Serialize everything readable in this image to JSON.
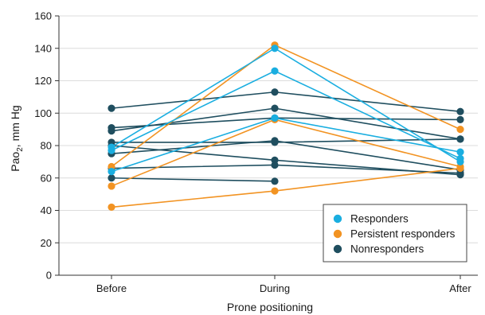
{
  "chart_data": {
    "type": "line",
    "categories": [
      "Before",
      "During",
      "After"
    ],
    "xlabel": "Prone positioning",
    "ylabel_main": "Pao",
    "ylabel_sub": "2",
    "ylabel_unit": ", mm Hg",
    "ylim": [
      0,
      160
    ],
    "yticks": [
      0,
      20,
      40,
      60,
      80,
      100,
      120,
      140,
      160
    ],
    "grid": "horizontal",
    "legend_position": "bottom-right",
    "colors": {
      "Responders": "#1aaee0",
      "Persistent responders": "#f29322",
      "Nonresponders": "#1f4e5f"
    },
    "legend": [
      "Responders",
      "Persistent responders",
      "Nonresponders"
    ],
    "patients": [
      {
        "group": "Responders",
        "values": [
          79,
          140,
          70
        ]
      },
      {
        "group": "Responders",
        "values": [
          77,
          126,
          72
        ]
      },
      {
        "group": "Responders",
        "values": [
          64,
          97,
          76
        ]
      },
      {
        "group": "Persistent responders",
        "values": [
          67,
          142,
          90
        ]
      },
      {
        "group": "Persistent responders",
        "values": [
          55,
          96,
          67
        ]
      },
      {
        "group": "Persistent responders",
        "values": [
          42,
          52,
          66
        ]
      },
      {
        "group": "Nonresponders",
        "values": [
          103,
          113,
          101
        ]
      },
      {
        "group": "Nonresponders",
        "values": [
          91,
          97,
          96
        ]
      },
      {
        "group": "Nonresponders",
        "values": [
          89,
          103,
          84
        ]
      },
      {
        "group": "Nonresponders",
        "values": [
          82,
          82,
          84
        ]
      },
      {
        "group": "Nonresponders",
        "values": [
          75,
          83,
          65
        ]
      },
      {
        "group": "Nonresponders",
        "values": [
          80,
          71,
          62
        ]
      },
      {
        "group": "Nonresponders",
        "values": [
          66,
          68,
          63
        ]
      },
      {
        "group": "Nonresponders",
        "values": [
          60,
          58,
          null
        ]
      }
    ]
  }
}
